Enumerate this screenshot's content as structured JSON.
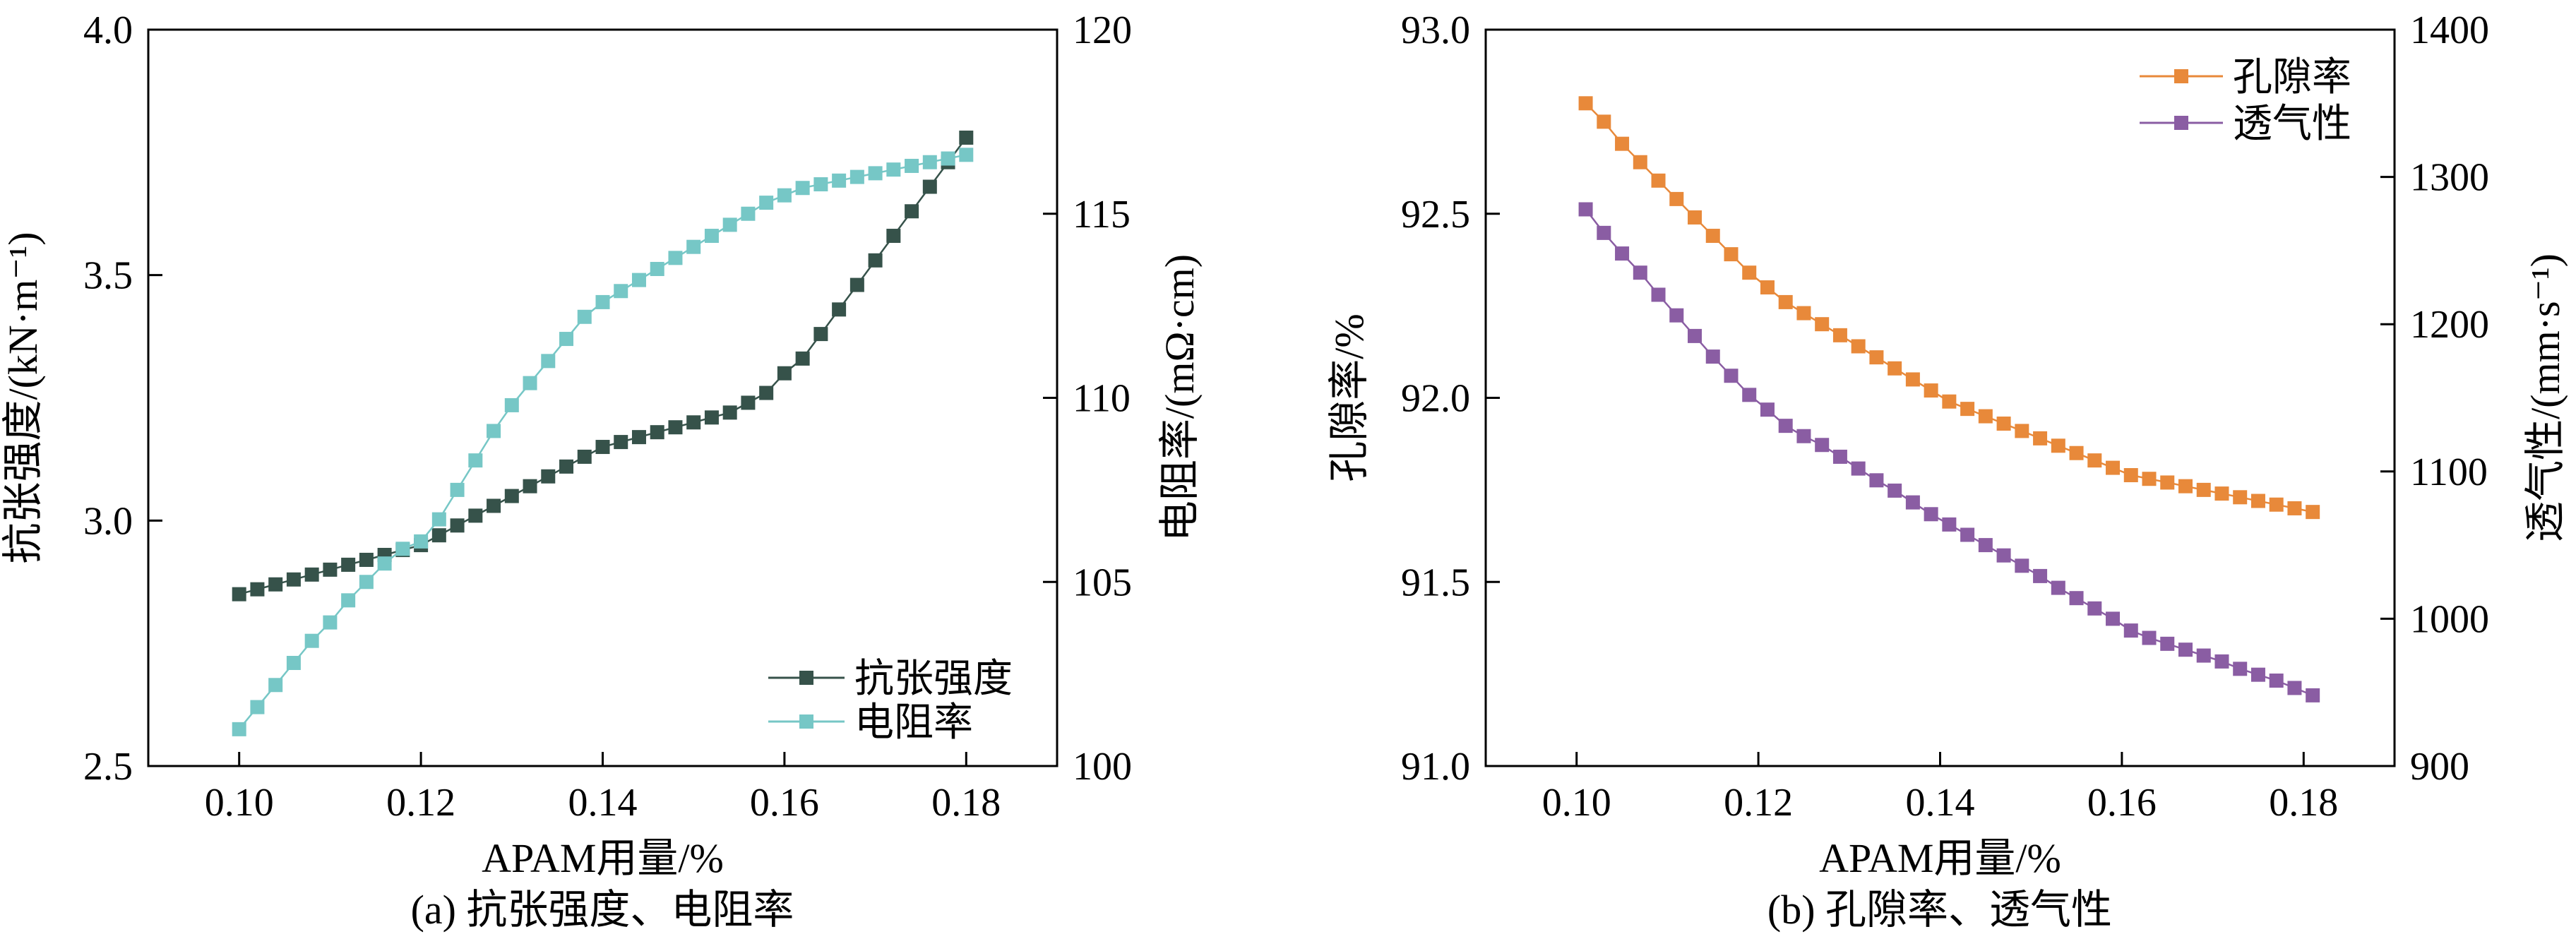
{
  "chart_data": [
    {
      "type": "line",
      "caption": "(a) 抗张强度、电阻率",
      "xlabel": "APAM用量/%",
      "ylabel": "抗张强度/(kN·m⁻¹)",
      "y2label": "电阻率/(mΩ·cm)",
      "xlim": [
        0.09,
        0.19
      ],
      "ylim": [
        2.5,
        4.0
      ],
      "y2lim": [
        100,
        120
      ],
      "xticks": [
        "0.10",
        "0.12",
        "0.14",
        "0.16",
        "0.18"
      ],
      "yticks": [
        "2.5",
        "3.0",
        "3.5",
        "4.0"
      ],
      "y2ticks": [
        "100",
        "105",
        "110",
        "115",
        "120"
      ],
      "legend_position": "lower-right",
      "grid": false,
      "x": [
        0.1,
        0.102,
        0.104,
        0.106,
        0.108,
        0.11,
        0.112,
        0.114,
        0.116,
        0.118,
        0.12,
        0.122,
        0.124,
        0.126,
        0.128,
        0.13,
        0.132,
        0.134,
        0.136,
        0.138,
        0.14,
        0.142,
        0.144,
        0.146,
        0.148,
        0.15,
        0.152,
        0.154,
        0.156,
        0.158,
        0.16,
        0.162,
        0.164,
        0.166,
        0.168,
        0.17,
        0.172,
        0.174,
        0.176,
        0.178,
        0.18
      ],
      "series": [
        {
          "name": "抗张强度",
          "axis": "left",
          "color": "#36524a",
          "values": [
            2.85,
            2.86,
            2.87,
            2.88,
            2.89,
            2.9,
            2.91,
            2.92,
            2.93,
            2.94,
            2.95,
            2.97,
            2.99,
            3.01,
            3.03,
            3.05,
            3.07,
            3.09,
            3.11,
            3.13,
            3.15,
            3.16,
            3.17,
            3.18,
            3.19,
            3.2,
            3.21,
            3.22,
            3.24,
            3.26,
            3.3,
            3.33,
            3.38,
            3.43,
            3.48,
            3.53,
            3.58,
            3.63,
            3.68,
            3.73,
            3.78
          ]
        },
        {
          "name": "电阻率",
          "axis": "right",
          "color": "#76c7c6",
          "values": [
            101.0,
            101.6,
            102.2,
            102.8,
            103.4,
            103.9,
            104.5,
            105.0,
            105.5,
            105.9,
            106.1,
            106.7,
            107.5,
            108.3,
            109.1,
            109.8,
            110.4,
            111.0,
            111.6,
            112.2,
            112.6,
            112.9,
            113.2,
            113.5,
            113.8,
            114.1,
            114.4,
            114.7,
            115.0,
            115.3,
            115.5,
            115.7,
            115.8,
            115.9,
            116.0,
            116.1,
            116.2,
            116.3,
            116.4,
            116.5,
            116.6
          ]
        }
      ]
    },
    {
      "type": "line",
      "caption": "(b) 孔隙率、透气性",
      "xlabel": "APAM用量/%",
      "ylabel": "孔隙率/%",
      "y2label": "透气性/(mm·s⁻¹)",
      "xlim": [
        0.09,
        0.19
      ],
      "ylim": [
        91.0,
        93.0
      ],
      "y2lim": [
        900,
        1400
      ],
      "xticks": [
        "0.10",
        "0.12",
        "0.14",
        "0.16",
        "0.18"
      ],
      "yticks": [
        "91.0",
        "91.5",
        "92.0",
        "92.5",
        "93.0"
      ],
      "y2ticks": [
        "900",
        "1000",
        "1100",
        "1200",
        "1300",
        "1400"
      ],
      "legend_position": "upper-right",
      "grid": false,
      "x": [
        0.101,
        0.103,
        0.105,
        0.107,
        0.109,
        0.111,
        0.113,
        0.115,
        0.117,
        0.119,
        0.121,
        0.123,
        0.125,
        0.127,
        0.129,
        0.131,
        0.133,
        0.135,
        0.137,
        0.139,
        0.141,
        0.143,
        0.145,
        0.147,
        0.149,
        0.151,
        0.153,
        0.155,
        0.157,
        0.159,
        0.161,
        0.163,
        0.165,
        0.167,
        0.169,
        0.171,
        0.173,
        0.175,
        0.177,
        0.179,
        0.181
      ],
      "series": [
        {
          "name": "孔隙率",
          "axis": "left",
          "color": "#e8893a",
          "values": [
            92.8,
            92.75,
            92.69,
            92.64,
            92.59,
            92.54,
            92.49,
            92.44,
            92.39,
            92.34,
            92.3,
            92.26,
            92.23,
            92.2,
            92.17,
            92.14,
            92.11,
            92.08,
            92.05,
            92.02,
            91.99,
            91.97,
            91.95,
            91.93,
            91.91,
            91.89,
            91.87,
            91.85,
            91.83,
            91.81,
            91.79,
            91.78,
            91.77,
            91.76,
            91.75,
            91.74,
            91.73,
            91.72,
            91.71,
            91.7,
            91.69
          ]
        },
        {
          "name": "透气性",
          "axis": "right",
          "color": "#8a5da3",
          "values": [
            1278,
            1262,
            1248,
            1235,
            1220,
            1206,
            1192,
            1178,
            1165,
            1152,
            1142,
            1131,
            1124,
            1118,
            1110,
            1102,
            1094,
            1087,
            1079,
            1071,
            1064,
            1057,
            1050,
            1043,
            1036,
            1029,
            1021,
            1014,
            1007,
            1000,
            992,
            987,
            983,
            979,
            975,
            971,
            966,
            962,
            958,
            953,
            948
          ]
        }
      ]
    }
  ]
}
